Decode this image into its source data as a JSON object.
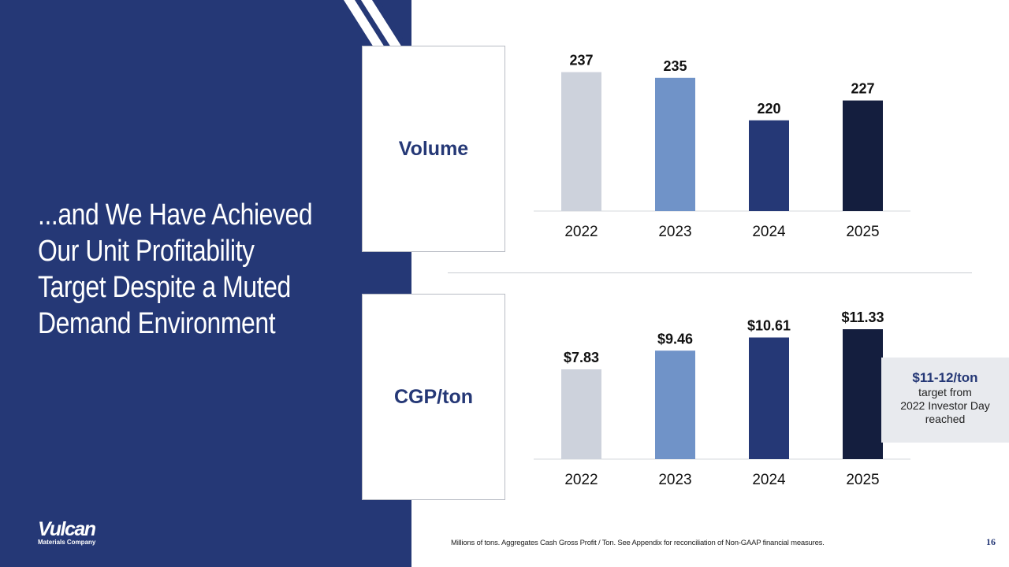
{
  "slide": {
    "title_lines": [
      "...and We Have Achieved",
      "Our Unit Profitability",
      "Target Despite a Muted",
      "Demand Environment"
    ],
    "logo": {
      "name": "Vulcan",
      "subtitle": "Materials Company"
    },
    "footnote": "Millions of tons. Aggregates Cash Gross Profit / Ton. See Appendix for reconciliation of Non-GAAP financial measures.",
    "page_number": "16",
    "callout": {
      "headline": "$11-12/ton",
      "lines": [
        "target from",
        "2022 Investor Day",
        "reached"
      ]
    }
  },
  "colors": {
    "panel": "#253876",
    "bar_2022": "#cdd2dc",
    "bar_2023": "#7093c8",
    "bar_2024": "#253876",
    "bar_2025": "#141e3e"
  },
  "chart_data": [
    {
      "type": "bar",
      "title": "Volume",
      "categories": [
        "2022",
        "2023",
        "2024",
        "2025"
      ],
      "values": [
        237,
        235,
        220,
        227
      ],
      "data_labels": [
        "237",
        "235",
        "220",
        "227"
      ],
      "ylim": [
        188,
        243
      ],
      "xlabel": "",
      "ylabel": "",
      "grid": false
    },
    {
      "type": "bar",
      "title": "CGP/ton",
      "categories": [
        "2022",
        "2023",
        "2024",
        "2025"
      ],
      "values": [
        7.83,
        9.46,
        10.61,
        11.33
      ],
      "data_labels": [
        "$7.83",
        "$9.46",
        "$10.61",
        "$11.33"
      ],
      "ylim": [
        0,
        13.6
      ],
      "xlabel": "",
      "ylabel": "",
      "grid": false
    }
  ]
}
